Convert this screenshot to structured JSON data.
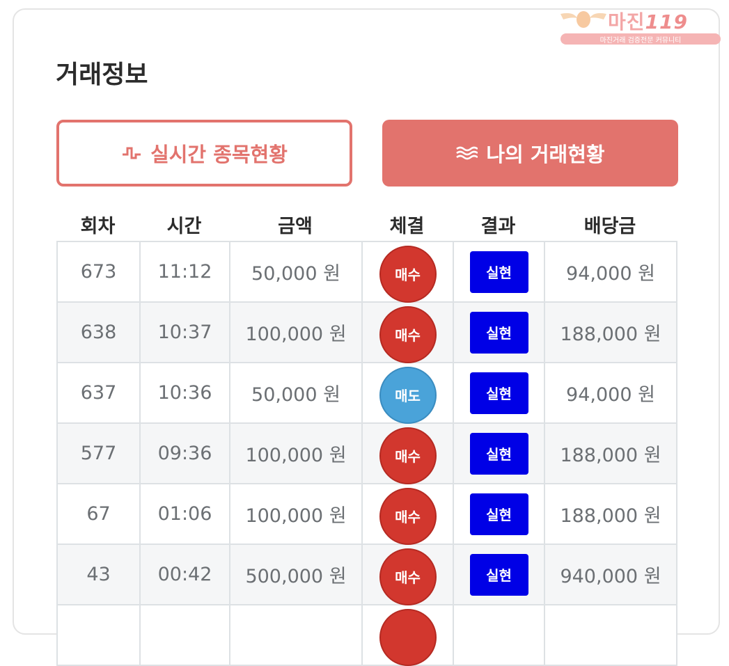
{
  "watermark": {
    "brand": "마진",
    "suffix": "119",
    "tagline": "마진거래 검증전문 커뮤니티"
  },
  "title": "거래정보",
  "tabs": [
    {
      "label": "실시간 종목현황",
      "icon": "pulse-icon",
      "active": false
    },
    {
      "label": "나의 거래현황",
      "icon": "waves-icon",
      "active": true
    }
  ],
  "table": {
    "headers": [
      "회차",
      "시간",
      "금액",
      "체결",
      "결과",
      "배당금"
    ],
    "rows": [
      {
        "round": "673",
        "time": "11:12",
        "amount": "50,000 원",
        "trade": "매수",
        "trade_type": "buy",
        "result": "실현",
        "payout": "94,000 원"
      },
      {
        "round": "638",
        "time": "10:37",
        "amount": "100,000 원",
        "trade": "매수",
        "trade_type": "buy",
        "result": "실현",
        "payout": "188,000 원"
      },
      {
        "round": "637",
        "time": "10:36",
        "amount": "50,000 원",
        "trade": "매도",
        "trade_type": "sell",
        "result": "실현",
        "payout": "94,000 원"
      },
      {
        "round": "577",
        "time": "09:36",
        "amount": "100,000 원",
        "trade": "매수",
        "trade_type": "buy",
        "result": "실현",
        "payout": "188,000 원"
      },
      {
        "round": "67",
        "time": "01:06",
        "amount": "100,000 원",
        "trade": "매수",
        "trade_type": "buy",
        "result": "실현",
        "payout": "188,000 원"
      },
      {
        "round": "43",
        "time": "00:42",
        "amount": "500,000 원",
        "trade": "매수",
        "trade_type": "buy",
        "result": "실현",
        "payout": "940,000 원"
      }
    ]
  },
  "colors": {
    "accent": "#e2736d",
    "buy": "#d2372e",
    "sell": "#4aa3d9",
    "result_badge": "#0000e6"
  }
}
